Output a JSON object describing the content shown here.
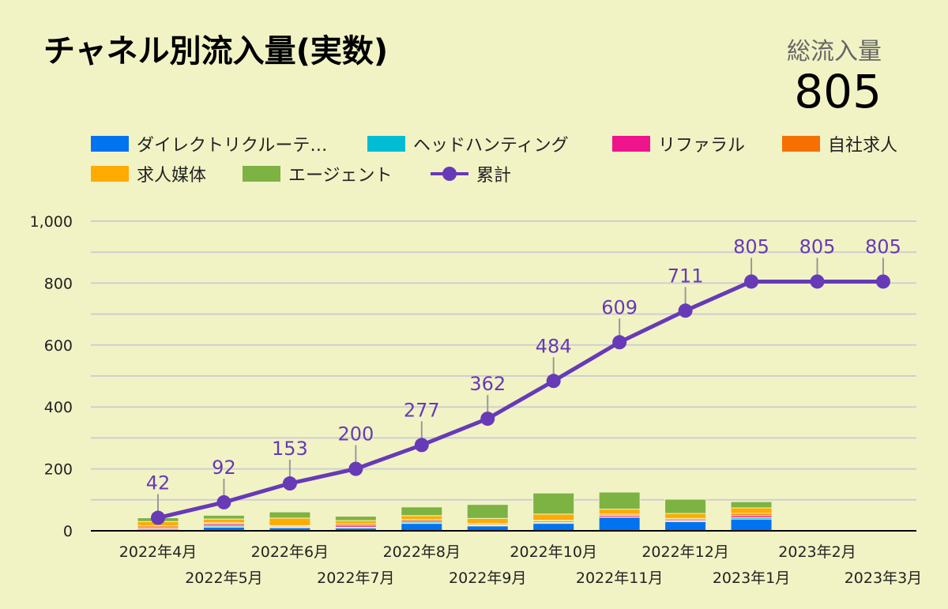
{
  "title": "チャネル別流入量(実数)",
  "kpi": {
    "label": "総流入量",
    "value": "805"
  },
  "chart_data": {
    "type": "bar",
    "stacked": true,
    "categories": [
      "2022年4月",
      "2022年5月",
      "2022年6月",
      "2022年7月",
      "2022年8月",
      "2022年9月",
      "2022年10月",
      "2022年11月",
      "2022年12月",
      "2023年1月",
      "2023年2月",
      "2023年3月"
    ],
    "ylim": [
      0,
      1000
    ],
    "yticks": [
      "0",
      "200",
      "400",
      "600",
      "800",
      "1,000"
    ],
    "grid": true,
    "legend_position": "top",
    "series": [
      {
        "name": "ダイレクトリクルーテ…",
        "color": "#0074f0",
        "values": [
          5,
          12,
          10,
          9,
          24,
          16,
          24,
          44,
          30,
          38,
          0,
          0
        ]
      },
      {
        "name": "ヘッドハンティング",
        "color": "#00bcd4",
        "values": [
          1,
          4,
          2,
          3,
          4,
          2,
          3,
          1,
          2,
          6,
          0,
          0
        ]
      },
      {
        "name": "リファラル",
        "color": "#f0148c",
        "values": [
          4,
          6,
          3,
          6,
          5,
          2,
          4,
          5,
          4,
          6,
          0,
          0
        ]
      },
      {
        "name": "自社求人",
        "color": "#f57000",
        "values": [
          6,
          4,
          2,
          5,
          4,
          4,
          3,
          4,
          4,
          6,
          0,
          0
        ]
      },
      {
        "name": "求人媒体",
        "color": "#ffab00",
        "values": [
          14,
          12,
          24,
          10,
          12,
          16,
          20,
          16,
          16,
          18,
          0,
          0
        ]
      },
      {
        "name": "エージェント",
        "color": "#7cb342",
        "values": [
          12,
          12,
          20,
          14,
          28,
          45,
          68,
          55,
          46,
          20,
          0,
          0
        ]
      }
    ],
    "line": {
      "name": "累計",
      "color": "#673ab7",
      "values": [
        42,
        92,
        153,
        200,
        277,
        362,
        484,
        609,
        711,
        805,
        805,
        805
      ],
      "labels": [
        "42",
        "92",
        "153",
        "200",
        "277",
        "362",
        "484",
        "609",
        "711",
        "805",
        "805",
        "805"
      ]
    }
  }
}
